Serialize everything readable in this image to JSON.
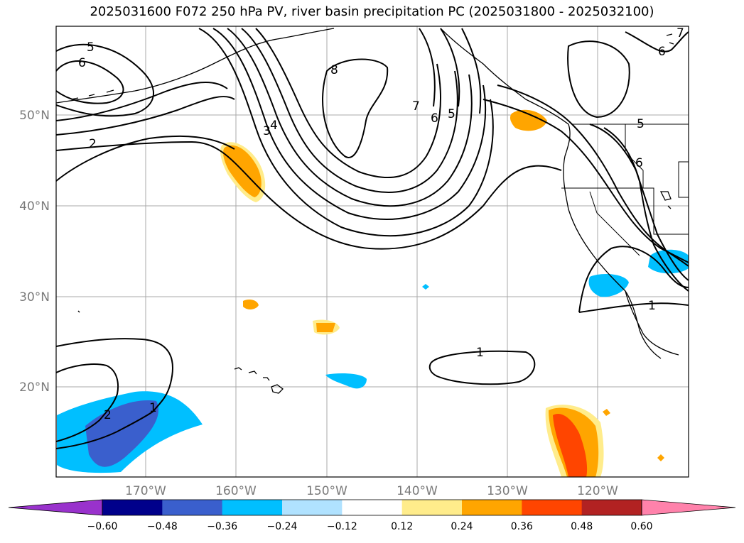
{
  "title": "2025031600 F072 250 hPa PV, river basin precipitation PC (2025031800 - 2025032100)",
  "lat_labels": [
    "50°N",
    "40°N",
    "30°N",
    "20°N"
  ],
  "lon_labels": [
    "170°W",
    "160°W",
    "150°W",
    "140°W",
    "130°W",
    "120°W"
  ],
  "colorbar": {
    "ticks": [
      "−0.60",
      "−0.48",
      "−0.36",
      "−0.24",
      "−0.12",
      "0.12",
      "0.24",
      "0.36",
      "0.48",
      "0.60"
    ],
    "colors": [
      "#9932cc",
      "#00008b",
      "#3a5fcd",
      "#00bfff",
      "#b0e2ff",
      "#ffffff",
      "#ffec8b",
      "#ffa500",
      "#ff4500",
      "#b22222",
      "#ff82ab"
    ]
  },
  "contour_labels": [
    "5",
    "6",
    "2",
    "3",
    "4",
    "8",
    "7",
    "6",
    "5",
    "7",
    "6",
    "5",
    "6",
    "1",
    "2",
    "1",
    "1"
  ],
  "colors": {
    "land": "#000000",
    "grid": "#a9a9a9"
  }
}
